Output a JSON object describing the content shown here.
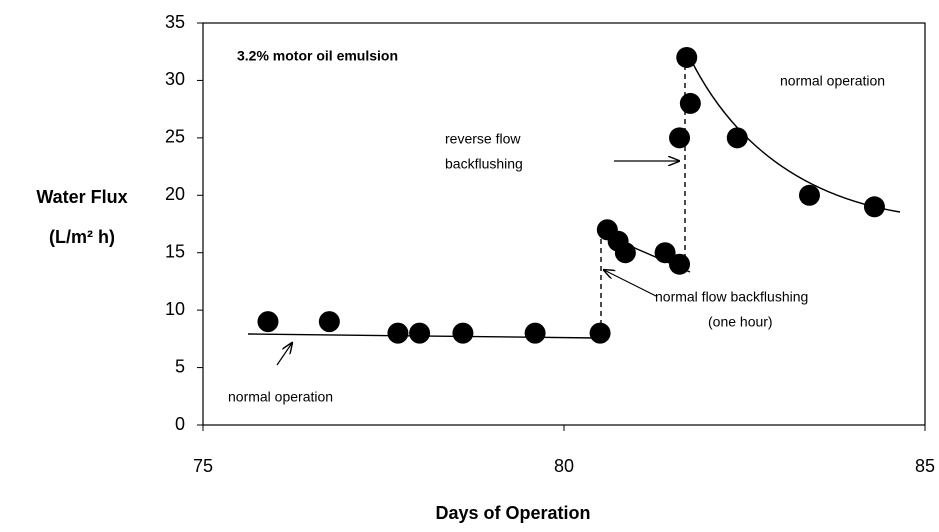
{
  "chart_data": {
    "type": "scatter",
    "xlabel": "Days of Operation",
    "ylabel": [
      "Water Flux",
      "(L/m² h)"
    ],
    "annotations": [
      "3.2% motor oil emulsion",
      "normal operation",
      "reverse flow",
      "backflushing",
      "normal flow  backflushing",
      "(one hour)",
      "normal operation"
    ],
    "series": [
      {
        "color": "#000000",
        "x": [
          75.9,
          76.75,
          77.7,
          78.0,
          78.6,
          79.6,
          80.5,
          80.6,
          80.75,
          80.85,
          81.4,
          81.6,
          81.6,
          81.75,
          81.7,
          82.4,
          83.4,
          84.3
        ],
        "values": [
          9,
          9,
          8,
          8,
          8,
          8,
          8,
          17,
          16,
          15,
          15,
          14,
          25,
          28,
          32,
          25,
          20,
          19
        ]
      }
    ],
    "xlim": [
      75,
      85
    ],
    "xticks": [
      75,
      80,
      85
    ],
    "ylim": [
      0,
      35
    ],
    "yticks": [
      0,
      5,
      10,
      15,
      20,
      25,
      30,
      35
    ]
  }
}
